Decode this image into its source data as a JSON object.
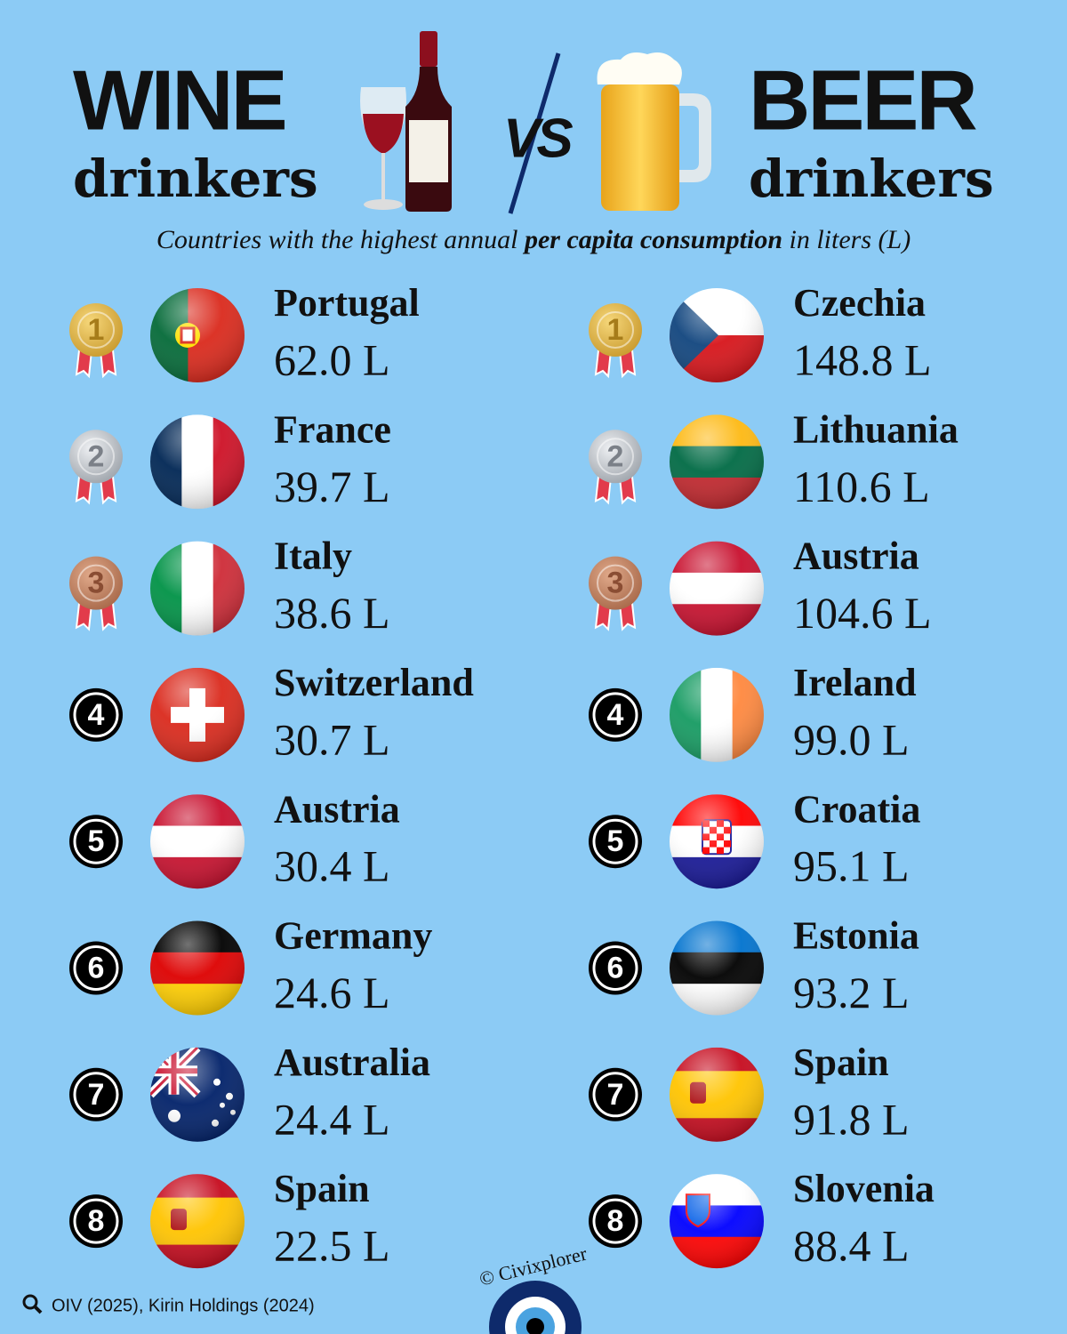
{
  "header": {
    "left_title": "WINE",
    "left_subtitle": "drinkers",
    "vs": "VS",
    "right_title": "BEER",
    "right_subtitle": "drinkers",
    "description": [
      "Countries with the highest annual ",
      "per capita consumption",
      " in liters (L)"
    ]
  },
  "wine": [
    {
      "rank": "1",
      "country": "Portugal",
      "consumption": "62.0 L"
    },
    {
      "rank": "2",
      "country": "France",
      "consumption": "39.7 L"
    },
    {
      "rank": "3",
      "country": "Italy",
      "consumption": "38.6 L"
    },
    {
      "rank": "4",
      "country": "Switzerland",
      "consumption": "30.7 L"
    },
    {
      "rank": "5",
      "country": "Austria",
      "consumption": "30.4 L"
    },
    {
      "rank": "6",
      "country": "Germany",
      "consumption": "24.6 L"
    },
    {
      "rank": "7",
      "country": "Australia",
      "consumption": "24.4 L"
    },
    {
      "rank": "8",
      "country": "Spain",
      "consumption": "22.5 L"
    }
  ],
  "beer": [
    {
      "rank": "1",
      "country": "Czechia",
      "consumption": "148.8 L"
    },
    {
      "rank": "2",
      "country": "Lithuania",
      "consumption": "110.6 L"
    },
    {
      "rank": "3",
      "country": "Austria",
      "consumption": "104.6 L"
    },
    {
      "rank": "4",
      "country": "Ireland",
      "consumption": "99.0 L"
    },
    {
      "rank": "5",
      "country": "Croatia",
      "consumption": "95.1 L"
    },
    {
      "rank": "6",
      "country": "Estonia",
      "consumption": "93.2 L"
    },
    {
      "rank": "7",
      "country": "Spain",
      "consumption": "91.8 L"
    },
    {
      "rank": "8",
      "country": "Slovenia",
      "consumption": "88.4 L"
    }
  ],
  "footer": {
    "source": "OIV (2025), Kirin Holdings (2024)",
    "credit": "© Civixplorer"
  }
}
